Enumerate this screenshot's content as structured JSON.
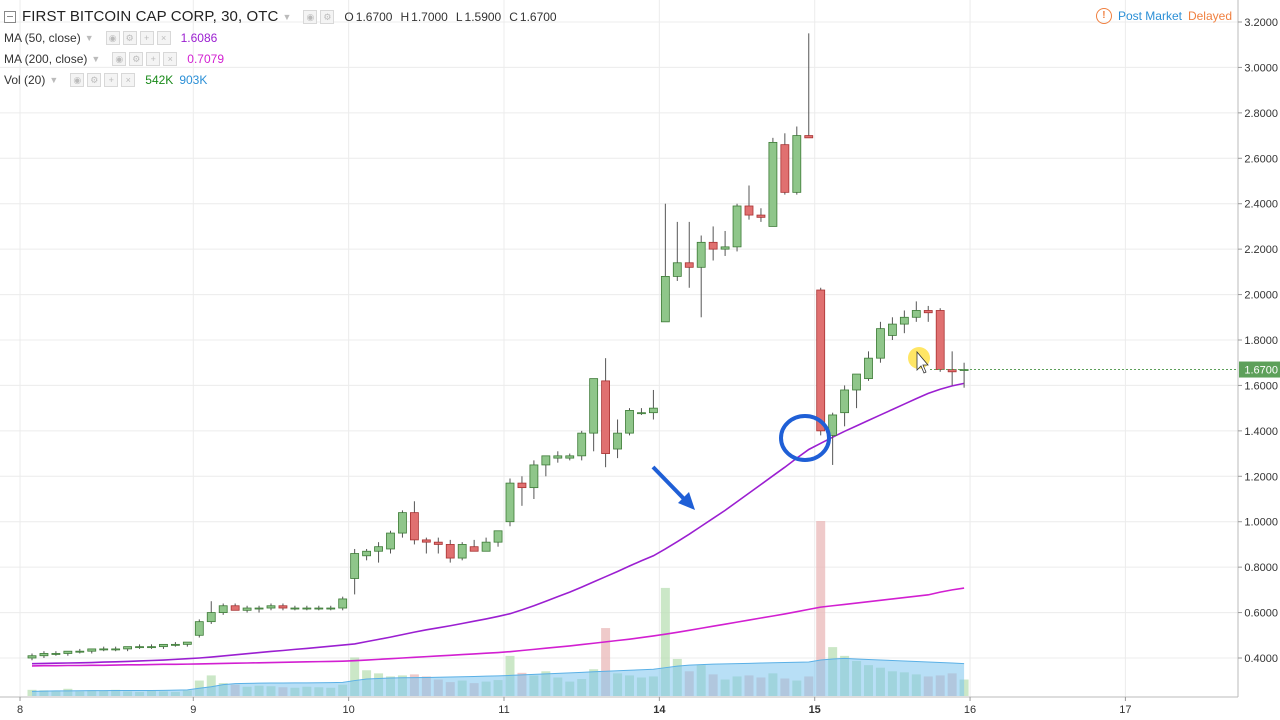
{
  "header": {
    "symbol_title": "FIRST BITCOIN CAP CORP, 30, OTC",
    "ohlc": [
      {
        "key": "O",
        "value": "1.6700"
      },
      {
        "key": "H",
        "value": "1.7000"
      },
      {
        "key": "L",
        "value": "1.5900"
      },
      {
        "key": "C",
        "value": "1.6700"
      }
    ],
    "post_market_label": "Post Market",
    "delayed_label": "Delayed",
    "info_glyph": "!"
  },
  "studies": [
    {
      "label": "MA (50, close)",
      "value": "1.6086",
      "color": "#9b1fd1"
    },
    {
      "label": "MA (200, close)",
      "value": "0.7079",
      "color": "#d21fd1"
    },
    {
      "label": "Vol (20)",
      "value": "542K",
      "value2": "903K",
      "color": "#1a8a1a",
      "color2": "#2b8fd6"
    }
  ],
  "colors": {
    "up": "#8fc68a",
    "up_border": "#3c7a36",
    "down": "#e07070",
    "down_border": "#a83232",
    "ma50": "#9b1fd1",
    "ma200": "#d21fd1",
    "annotation": "#1f5fd6",
    "last_price_bg": "#5da05a"
  },
  "chart_data": {
    "type": "candlestick",
    "ylim": [
      0.3,
      3.25
    ],
    "y_ticks": [
      "3.2000",
      "3.0000",
      "2.8000",
      "2.6000",
      "2.4000",
      "2.2000",
      "2.0000",
      "1.8000",
      "1.6000",
      "1.4000",
      "1.2000",
      "1.0000",
      "0.8000",
      "0.6000",
      "0.4000"
    ],
    "y_tick_values": [
      3.2,
      3.0,
      2.8,
      2.6,
      2.4,
      2.2,
      2.0,
      1.8,
      1.6,
      1.4,
      1.2,
      1.0,
      0.8,
      0.6,
      0.4
    ],
    "x_ticks": [
      {
        "label": "8",
        "i": -0.5
      },
      {
        "label": "9",
        "i": 14
      },
      {
        "label": "10",
        "i": 27
      },
      {
        "label": "11",
        "i": 40
      },
      {
        "label": "14",
        "i": 53
      },
      {
        "label": "15",
        "i": 66
      },
      {
        "label": "16",
        "i": 79
      },
      {
        "label": "17",
        "i": 92
      }
    ],
    "bold_x_ticks": [
      "14",
      "15"
    ],
    "last_price": "1.6700",
    "candles": [
      [
        0.4,
        0.42,
        0.39,
        0.41
      ],
      [
        0.41,
        0.43,
        0.4,
        0.42
      ],
      [
        0.42,
        0.43,
        0.41,
        0.42
      ],
      [
        0.42,
        0.43,
        0.41,
        0.43
      ],
      [
        0.43,
        0.44,
        0.42,
        0.43
      ],
      [
        0.43,
        0.44,
        0.42,
        0.44
      ],
      [
        0.44,
        0.45,
        0.43,
        0.44
      ],
      [
        0.44,
        0.45,
        0.43,
        0.44
      ],
      [
        0.44,
        0.45,
        0.43,
        0.45
      ],
      [
        0.45,
        0.46,
        0.44,
        0.45
      ],
      [
        0.45,
        0.46,
        0.44,
        0.45
      ],
      [
        0.45,
        0.46,
        0.44,
        0.46
      ],
      [
        0.46,
        0.47,
        0.45,
        0.46
      ],
      [
        0.46,
        0.47,
        0.45,
        0.47
      ],
      [
        0.5,
        0.57,
        0.49,
        0.56
      ],
      [
        0.56,
        0.65,
        0.55,
        0.6
      ],
      [
        0.6,
        0.64,
        0.59,
        0.63
      ],
      [
        0.63,
        0.64,
        0.61,
        0.61
      ],
      [
        0.61,
        0.63,
        0.6,
        0.62
      ],
      [
        0.62,
        0.63,
        0.6,
        0.62
      ],
      [
        0.62,
        0.64,
        0.61,
        0.63
      ],
      [
        0.63,
        0.64,
        0.61,
        0.62
      ],
      [
        0.62,
        0.63,
        0.61,
        0.62
      ],
      [
        0.62,
        0.63,
        0.61,
        0.62
      ],
      [
        0.62,
        0.63,
        0.61,
        0.62
      ],
      [
        0.62,
        0.63,
        0.61,
        0.62
      ],
      [
        0.62,
        0.67,
        0.61,
        0.66
      ],
      [
        0.75,
        0.88,
        0.68,
        0.86
      ],
      [
        0.85,
        0.88,
        0.83,
        0.87
      ],
      [
        0.87,
        0.91,
        0.82,
        0.89
      ],
      [
        0.88,
        0.96,
        0.86,
        0.95
      ],
      [
        0.95,
        1.05,
        0.93,
        1.04
      ],
      [
        1.04,
        1.09,
        0.9,
        0.92
      ],
      [
        0.92,
        0.93,
        0.86,
        0.91
      ],
      [
        0.91,
        0.93,
        0.86,
        0.9
      ],
      [
        0.9,
        0.92,
        0.82,
        0.84
      ],
      [
        0.84,
        0.91,
        0.83,
        0.9
      ],
      [
        0.89,
        0.92,
        0.87,
        0.87
      ],
      [
        0.87,
        0.93,
        0.87,
        0.91
      ],
      [
        0.91,
        0.96,
        0.89,
        0.96
      ],
      [
        1.0,
        1.19,
        0.98,
        1.17
      ],
      [
        1.17,
        1.2,
        1.07,
        1.15
      ],
      [
        1.15,
        1.27,
        1.1,
        1.25
      ],
      [
        1.25,
        1.29,
        1.2,
        1.29
      ],
      [
        1.28,
        1.31,
        1.26,
        1.29
      ],
      [
        1.28,
        1.3,
        1.27,
        1.29
      ],
      [
        1.29,
        1.4,
        1.27,
        1.39
      ],
      [
        1.39,
        1.63,
        1.31,
        1.63
      ],
      [
        1.62,
        1.72,
        1.24,
        1.3
      ],
      [
        1.32,
        1.45,
        1.28,
        1.39
      ],
      [
        1.39,
        1.5,
        1.38,
        1.49
      ],
      [
        1.48,
        1.5,
        1.47,
        1.48
      ],
      [
        1.48,
        1.58,
        1.45,
        1.5
      ],
      [
        1.88,
        2.4,
        1.88,
        2.08
      ],
      [
        2.08,
        2.32,
        2.06,
        2.14
      ],
      [
        2.14,
        2.32,
        2.03,
        2.12
      ],
      [
        2.12,
        2.26,
        1.9,
        2.23
      ],
      [
        2.23,
        2.3,
        2.15,
        2.2
      ],
      [
        2.2,
        2.28,
        2.17,
        2.21
      ],
      [
        2.21,
        2.4,
        2.19,
        2.39
      ],
      [
        2.39,
        2.48,
        2.33,
        2.35
      ],
      [
        2.35,
        2.38,
        2.32,
        2.34
      ],
      [
        2.3,
        2.69,
        2.3,
        2.67
      ],
      [
        2.66,
        2.71,
        2.44,
        2.45
      ],
      [
        2.45,
        2.74,
        2.44,
        2.7
      ],
      [
        2.7,
        3.15,
        2.69,
        2.69
      ],
      [
        2.02,
        2.03,
        1.38,
        1.4
      ],
      [
        1.38,
        1.48,
        1.25,
        1.47
      ],
      [
        1.48,
        1.6,
        1.42,
        1.58
      ],
      [
        1.58,
        1.65,
        1.5,
        1.65
      ],
      [
        1.63,
        1.75,
        1.62,
        1.72
      ],
      [
        1.72,
        1.88,
        1.7,
        1.85
      ],
      [
        1.82,
        1.9,
        1.8,
        1.87
      ],
      [
        1.87,
        1.93,
        1.83,
        1.9
      ],
      [
        1.9,
        1.97,
        1.88,
        1.93
      ],
      [
        1.93,
        1.95,
        1.88,
        1.92
      ],
      [
        1.93,
        1.94,
        1.66,
        1.67
      ],
      [
        1.67,
        1.75,
        1.6,
        1.66
      ],
      [
        1.67,
        1.7,
        1.59,
        1.67
      ]
    ],
    "volume": [
      12,
      11,
      10,
      14,
      9,
      11,
      10,
      12,
      9,
      8,
      10,
      9,
      8,
      11,
      30,
      40,
      25,
      22,
      18,
      20,
      19,
      17,
      16,
      18,
      17,
      16,
      22,
      75,
      50,
      44,
      38,
      40,
      42,
      38,
      32,
      27,
      30,
      25,
      28,
      31,
      78,
      45,
      40,
      48,
      36,
      28,
      33,
      52,
      132,
      44,
      40,
      36,
      38,
      210,
      72,
      48,
      60,
      42,
      32,
      38,
      40,
      36,
      44,
      34,
      30,
      38,
      340,
      95,
      78,
      68,
      60,
      55,
      48,
      46,
      42,
      38,
      40,
      44,
      32
    ],
    "volume_ma": [
      9,
      9.5,
      10,
      10,
      10.2,
      10.4,
      10.5,
      10.6,
      10.6,
      10.7,
      10.8,
      11,
      11.5,
      12,
      15,
      18,
      22,
      24,
      24.5,
      25,
      25.2,
      25.3,
      25.4,
      25.6,
      25.8,
      26,
      26.5,
      30,
      33,
      34,
      35,
      35.5,
      35.8,
      36,
      36.5,
      37,
      37.5,
      38,
      38.5,
      39,
      40,
      41,
      42,
      43,
      44,
      45,
      46,
      47,
      48,
      49,
      50,
      51,
      52,
      55,
      58,
      60,
      61,
      62,
      62.5,
      63,
      63.5,
      64,
      64.5,
      65,
      65.5,
      66,
      70,
      72,
      73,
      72,
      71,
      70,
      69,
      68,
      67,
      66,
      65,
      64,
      63
    ],
    "ma50": [
      0.375,
      0.376,
      0.377,
      0.378,
      0.379,
      0.38,
      0.382,
      0.383,
      0.385,
      0.387,
      0.389,
      0.391,
      0.394,
      0.397,
      0.4,
      0.404,
      0.409,
      0.414,
      0.419,
      0.424,
      0.429,
      0.433,
      0.438,
      0.442,
      0.447,
      0.452,
      0.457,
      0.462,
      0.472,
      0.482,
      0.492,
      0.503,
      0.514,
      0.524,
      0.533,
      0.542,
      0.552,
      0.562,
      0.572,
      0.583,
      0.595,
      0.612,
      0.63,
      0.65,
      0.67,
      0.69,
      0.712,
      0.735,
      0.758,
      0.781,
      0.805,
      0.828,
      0.85,
      0.88,
      0.912,
      0.945,
      0.98,
      1.015,
      1.05,
      1.088,
      1.126,
      1.164,
      1.202,
      1.24,
      1.28,
      1.318,
      1.345,
      1.372,
      1.398,
      1.422,
      1.446,
      1.47,
      1.494,
      1.518,
      1.542,
      1.565,
      1.583,
      1.598,
      1.609
    ],
    "ma200": [
      0.365,
      0.366,
      0.366,
      0.367,
      0.367,
      0.368,
      0.368,
      0.369,
      0.37,
      0.37,
      0.371,
      0.372,
      0.372,
      0.373,
      0.374,
      0.375,
      0.376,
      0.377,
      0.378,
      0.379,
      0.38,
      0.381,
      0.382,
      0.383,
      0.384,
      0.385,
      0.386,
      0.388,
      0.391,
      0.394,
      0.397,
      0.4,
      0.403,
      0.406,
      0.409,
      0.412,
      0.415,
      0.418,
      0.421,
      0.424,
      0.428,
      0.433,
      0.438,
      0.443,
      0.448,
      0.453,
      0.459,
      0.465,
      0.471,
      0.477,
      0.483,
      0.49,
      0.497,
      0.505,
      0.513,
      0.522,
      0.531,
      0.54,
      0.549,
      0.558,
      0.567,
      0.576,
      0.585,
      0.594,
      0.604,
      0.614,
      0.624,
      0.63,
      0.636,
      0.642,
      0.648,
      0.654,
      0.66,
      0.666,
      0.672,
      0.678,
      0.69,
      0.7,
      0.708
    ]
  }
}
